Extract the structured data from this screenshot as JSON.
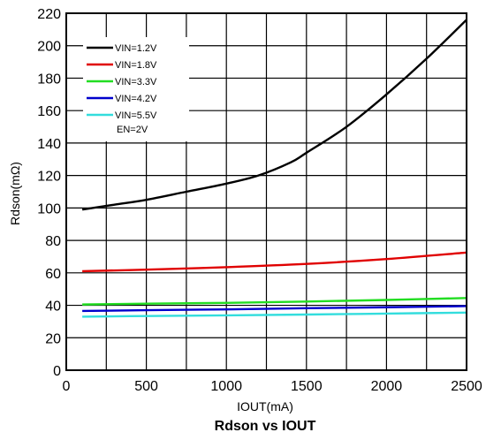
{
  "chart_data": {
    "type": "line",
    "caption": "Rdson vs IOUT",
    "xlabel": "IOUT(mA)",
    "ylabel": "Rdson(mΩ)",
    "xlim": [
      0,
      2500
    ],
    "ylim": [
      0,
      220
    ],
    "x_ticks": [
      0,
      500,
      1000,
      1500,
      2000,
      2500
    ],
    "y_ticks": [
      0,
      20,
      40,
      60,
      80,
      100,
      120,
      140,
      160,
      180,
      200,
      220
    ],
    "grid": true,
    "legend_position": "top-left",
    "legend_note": "EN=2V",
    "series": [
      {
        "name": "VIN=1.2V",
        "color": "#000000",
        "points": [
          [
            100,
            99
          ],
          [
            300,
            102
          ],
          [
            500,
            105
          ],
          [
            750,
            110
          ],
          [
            1000,
            115
          ],
          [
            1200,
            120
          ],
          [
            1400,
            128
          ],
          [
            1500,
            134
          ],
          [
            1750,
            150
          ],
          [
            2000,
            170
          ],
          [
            2250,
            192
          ],
          [
            2500,
            216
          ]
        ]
      },
      {
        "name": "VIN=1.8V",
        "color": "#e00000",
        "points": [
          [
            100,
            61
          ],
          [
            500,
            62
          ],
          [
            1000,
            63.5
          ],
          [
            1500,
            65.5
          ],
          [
            2000,
            68.5
          ],
          [
            2500,
            72.5
          ]
        ]
      },
      {
        "name": "VIN=3.3V",
        "color": "#22dd22",
        "points": [
          [
            100,
            40.5
          ],
          [
            500,
            41
          ],
          [
            1000,
            41.5
          ],
          [
            1500,
            42.3
          ],
          [
            2000,
            43.3
          ],
          [
            2500,
            44.5
          ]
        ]
      },
      {
        "name": "VIN=4.2V",
        "color": "#0000cc",
        "points": [
          [
            100,
            36.5
          ],
          [
            500,
            37
          ],
          [
            1000,
            37.5
          ],
          [
            1500,
            38.2
          ],
          [
            2000,
            38.8
          ],
          [
            2500,
            39.5
          ]
        ]
      },
      {
        "name": "VIN=5.5V",
        "color": "#33dddd",
        "points": [
          [
            100,
            33
          ],
          [
            500,
            33.4
          ],
          [
            1000,
            33.8
          ],
          [
            1500,
            34.3
          ],
          [
            2000,
            34.9
          ],
          [
            2500,
            35.5
          ]
        ]
      }
    ]
  }
}
